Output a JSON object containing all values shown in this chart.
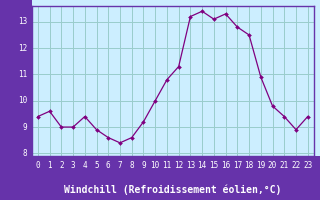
{
  "x": [
    0,
    1,
    2,
    3,
    4,
    5,
    6,
    7,
    8,
    9,
    10,
    11,
    12,
    13,
    14,
    15,
    16,
    17,
    18,
    19,
    20,
    21,
    22,
    23
  ],
  "y": [
    9.4,
    9.6,
    9.0,
    9.0,
    9.4,
    8.9,
    8.6,
    8.4,
    8.6,
    9.2,
    10.0,
    10.8,
    11.3,
    13.2,
    13.4,
    13.1,
    13.3,
    12.8,
    12.5,
    10.9,
    9.8,
    9.4,
    8.9,
    9.4
  ],
  "xlabel": "Windchill (Refroidissement éolien,°C)",
  "ylim": [
    7.9,
    13.6
  ],
  "xlim": [
    -0.5,
    23.5
  ],
  "yticks": [
    8,
    9,
    10,
    11,
    12,
    13
  ],
  "xticks": [
    0,
    1,
    2,
    3,
    4,
    5,
    6,
    7,
    8,
    9,
    10,
    11,
    12,
    13,
    14,
    15,
    16,
    17,
    18,
    19,
    20,
    21,
    22,
    23
  ],
  "line_color": "#800080",
  "marker_color": "#800080",
  "bg_color": "#cceeff",
  "grid_color": "#99cccc",
  "axis_bg_color": "#6633aa",
  "axis_text_color": "#ffffff",
  "tick_label_fontsize": 5.5,
  "xlabel_fontsize": 7.0
}
